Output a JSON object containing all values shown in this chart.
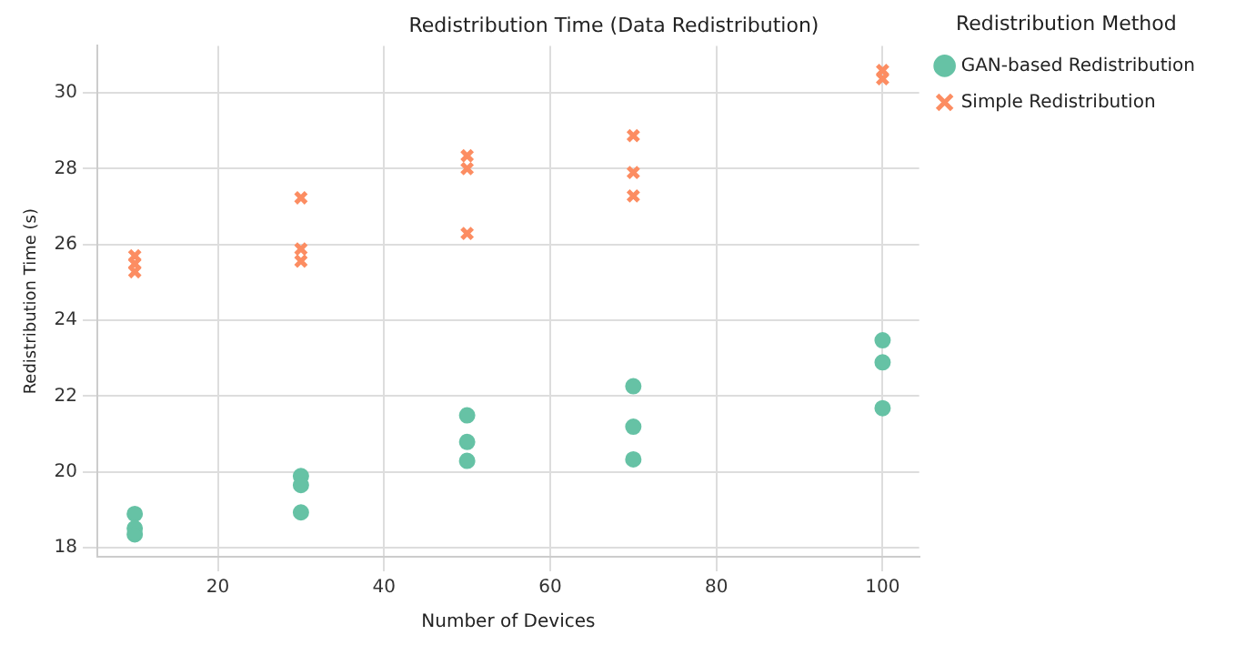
{
  "chart_data": {
    "type": "scatter",
    "title": "Redistribution Time (Data Redistribution)",
    "xlabel": "Number of Devices",
    "ylabel": "Redistribution Time (s)",
    "legend_title": "Redistribution Method",
    "legend": "top right",
    "grid": true,
    "xlim": [
      5.5,
      104.4
    ],
    "xticks": [
      20,
      40,
      60,
      80,
      100
    ],
    "ylim": [
      17.76,
      31.24
    ],
    "yticks": [
      18,
      20,
      22,
      24,
      26,
      28,
      30
    ],
    "series": [
      {
        "name": "GAN-based Redistribution",
        "color": "#66c2a5",
        "marker": "circle",
        "x": [
          10,
          10,
          10,
          30,
          30,
          30,
          50,
          50,
          50,
          70,
          70,
          70,
          100,
          100,
          100
        ],
        "values": [
          18.89,
          18.51,
          18.35,
          19.89,
          19.65,
          18.93,
          21.49,
          20.79,
          20.29,
          22.26,
          21.19,
          20.33,
          23.47,
          22.89,
          21.68
        ]
      },
      {
        "name": "Simple Redistribution",
        "color": "#fc8d62",
        "marker": "cross",
        "x": [
          10,
          10,
          10,
          30,
          30,
          30,
          50,
          50,
          50,
          70,
          70,
          70,
          100,
          100
        ],
        "values": [
          25.7,
          25.49,
          25.28,
          27.23,
          25.88,
          25.56,
          28.34,
          28.0,
          26.29,
          28.87,
          27.9,
          27.28,
          30.59,
          30.37
        ]
      }
    ]
  }
}
